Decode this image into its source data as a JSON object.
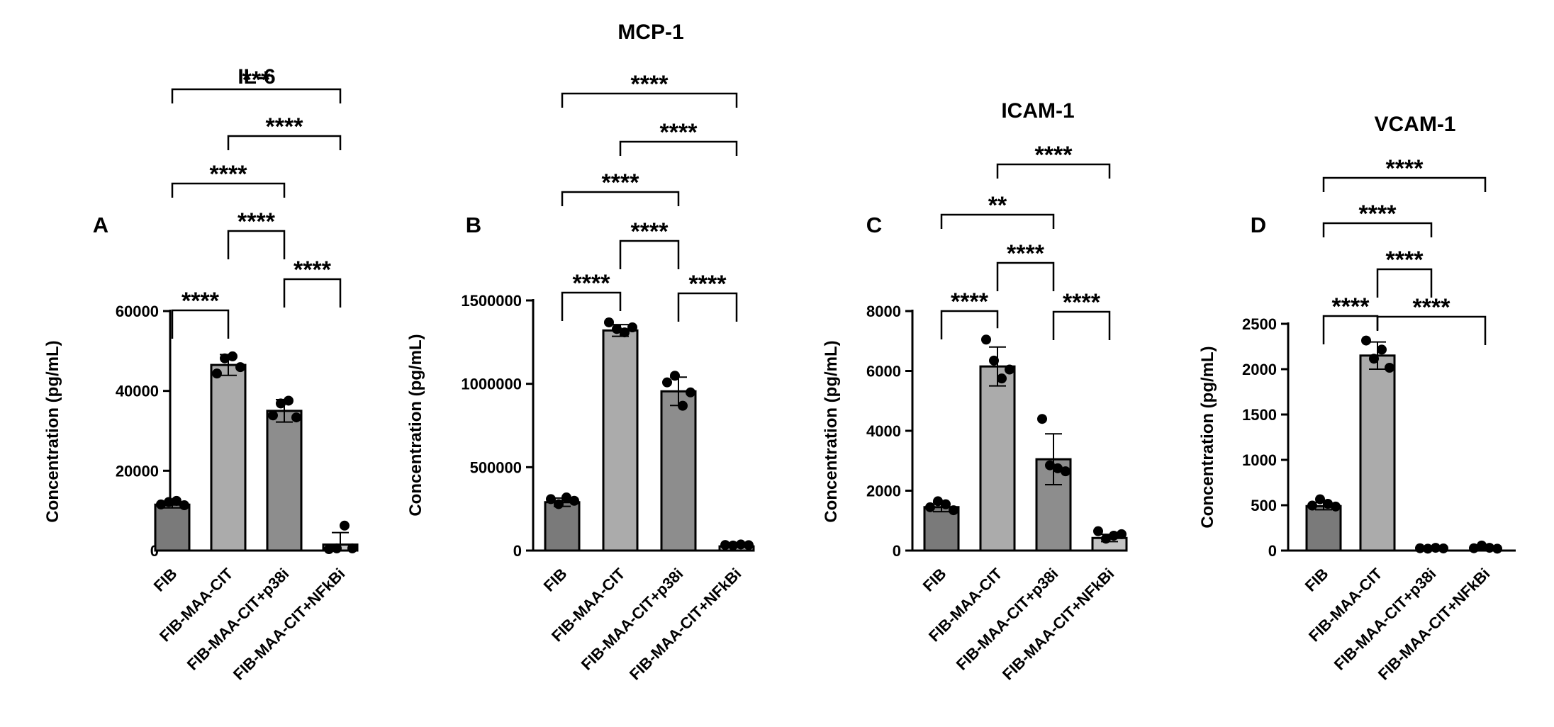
{
  "chart_data": [
    {
      "type": "bar",
      "panel_label": "A",
      "title": "IL-6",
      "ylabel": "Concentration (pg/mL)",
      "ylim": [
        0,
        60000
      ],
      "yticks": [
        0,
        20000,
        40000,
        60000
      ],
      "categories": [
        "FIB",
        "FIB-MAA-CIT",
        "FIB-MAA-CIT+p38i",
        "FIB-MAA-CIT+NFkBi"
      ],
      "values": [
        11500,
        46500,
        35000,
        1500
      ],
      "errors": [
        800,
        2600,
        2800,
        3000
      ],
      "points": [
        [
          11200,
          11800,
          12100,
          11000
        ],
        [
          44000,
          47800,
          48300,
          45600
        ],
        [
          33500,
          36500,
          37200,
          33000
        ],
        [
          0,
          200,
          5900,
          200
        ]
      ],
      "comparisons": [
        {
          "from": 0,
          "to": 1,
          "label": "****"
        },
        {
          "from": 2,
          "to": 3,
          "label": "****"
        },
        {
          "from": 1,
          "to": 2,
          "label": "****"
        },
        {
          "from": 0,
          "to": 2,
          "label": "****"
        },
        {
          "from": 1,
          "to": 3,
          "label": "****"
        },
        {
          "from": 0,
          "to": 3,
          "label": "***"
        }
      ]
    },
    {
      "type": "bar",
      "panel_label": "B",
      "title": "MCP-1",
      "ylabel": "Concentration (pg/mL)",
      "ylim": [
        0,
        1500000
      ],
      "yticks": [
        0,
        500000,
        1000000,
        1500000
      ],
      "categories": [
        "FIB",
        "FIB-MAA-CIT",
        "FIB-MAA-CIT+p38i",
        "FIB-MAA-CIT+NFkBi"
      ],
      "values": [
        290000,
        1320000,
        955000,
        25000
      ],
      "errors": [
        25000,
        35000,
        85000,
        5000
      ],
      "points": [
        [
          300000,
          270000,
          310000,
          290000
        ],
        [
          1360000,
          1320000,
          1300000,
          1330000
        ],
        [
          1000000,
          1040000,
          860000,
          940000
        ],
        [
          25000,
          22000,
          28000,
          24000
        ]
      ],
      "comparisons": [
        {
          "from": 0,
          "to": 1,
          "label": "****"
        },
        {
          "from": 2,
          "to": 3,
          "label": "****"
        },
        {
          "from": 1,
          "to": 2,
          "label": "****"
        },
        {
          "from": 0,
          "to": 2,
          "label": "****"
        },
        {
          "from": 1,
          "to": 3,
          "label": "****"
        },
        {
          "from": 0,
          "to": 3,
          "label": "****"
        }
      ]
    },
    {
      "type": "bar",
      "panel_label": "C",
      "title": "ICAM-1",
      "ylabel": "Concentration (pg/mL)",
      "ylim": [
        0,
        8000
      ],
      "yticks": [
        0,
        2000,
        4000,
        6000,
        8000
      ],
      "categories": [
        "FIB",
        "FIB-MAA-CIT",
        "FIB-MAA-CIT+p38i",
        "FIB-MAA-CIT+NFkBi"
      ],
      "values": [
        1450,
        6150,
        3050,
        420
      ],
      "errors": [
        150,
        650,
        850,
        120
      ],
      "points": [
        [
          1400,
          1600,
          1500,
          1300
        ],
        [
          7000,
          6300,
          5700,
          6000
        ],
        [
          4350,
          2800,
          2700,
          2600
        ],
        [
          600,
          350,
          450,
          500
        ]
      ],
      "comparisons": [
        {
          "from": 0,
          "to": 1,
          "label": "****"
        },
        {
          "from": 2,
          "to": 3,
          "label": "****"
        },
        {
          "from": 1,
          "to": 2,
          "label": "****"
        },
        {
          "from": 0,
          "to": 2,
          "label": "**"
        },
        {
          "from": 1,
          "to": 3,
          "label": "****"
        }
      ]
    },
    {
      "type": "bar",
      "panel_label": "D",
      "title": "VCAM-1",
      "ylabel": "Concentration (pg/mL)",
      "ylim": [
        0,
        2500
      ],
      "yticks": [
        0,
        500,
        1000,
        1500,
        2000,
        2500
      ],
      "categories": [
        "FIB",
        "FIB-MAA-CIT",
        "FIB-MAA-CIT+p38i",
        "FIB-MAA-CIT+NFkBi"
      ],
      "values": [
        490,
        2150,
        0,
        0
      ],
      "errors": [
        40,
        150,
        5,
        5
      ],
      "points": [
        [
          480,
          550,
          500,
          470
        ],
        [
          2300,
          2100,
          2200,
          2000
        ],
        [
          10,
          5,
          15,
          8
        ],
        [
          10,
          40,
          15,
          5
        ]
      ],
      "comparisons": [
        {
          "from": 0,
          "to": 1,
          "label": "****"
        },
        {
          "from": 1,
          "to": 3,
          "label": "****"
        },
        {
          "from": 1,
          "to": 2,
          "label": "****"
        },
        {
          "from": 0,
          "to": 2,
          "label": "****"
        },
        {
          "from": 0,
          "to": 3,
          "label": "****"
        }
      ]
    }
  ]
}
